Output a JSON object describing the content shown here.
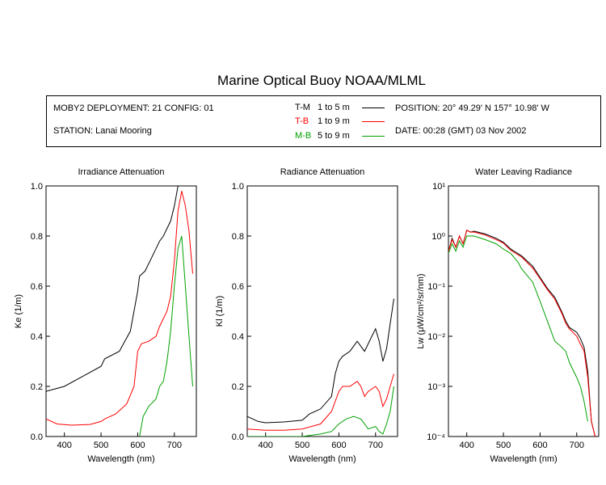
{
  "title": "Marine Optical Buoy NOAA/MLML",
  "info": {
    "deployment": "MOBY2 DEPLOYMENT: 21 CONFIG: 01",
    "station": "STATION: Lanai Mooring",
    "position": "POSITION: 20° 49.29' N   157° 10.98' W",
    "date": "DATE: 00:28 (GMT) 03 Nov 2002"
  },
  "legend": [
    {
      "code": "T-M",
      "range": "1 to 5  m",
      "color": "#000000"
    },
    {
      "code": "T-B",
      "range": "1 to 9  m",
      "color": "#ff0000"
    },
    {
      "code": "M-B",
      "range": "5 to 9  m",
      "color": "#00a000"
    }
  ],
  "chart_data": [
    {
      "type": "line",
      "title": "Irradiance Attenuation",
      "xlabel": "Wavelength (nm)",
      "ylabel": "Ke  (1/m)",
      "xlim": [
        350,
        760
      ],
      "ylim": [
        0,
        1
      ],
      "xticks": [
        "400",
        "500",
        "600",
        "700"
      ],
      "yticks": [
        "0.0",
        "0.2",
        "0.4",
        "0.6",
        "0.8",
        "1.0"
      ],
      "series": [
        {
          "name": "T-M",
          "color": "#000000",
          "x": [
            350,
            400,
            450,
            500,
            510,
            550,
            580,
            600,
            605,
            620,
            640,
            660,
            670,
            690,
            700,
            710
          ],
          "y": [
            0.18,
            0.2,
            0.24,
            0.28,
            0.31,
            0.34,
            0.42,
            0.58,
            0.64,
            0.66,
            0.72,
            0.78,
            0.8,
            0.86,
            0.92,
            1.0
          ]
        },
        {
          "name": "T-B",
          "color": "#ff0000",
          "x": [
            350,
            380,
            420,
            470,
            500,
            510,
            540,
            570,
            590,
            600,
            610,
            630,
            650,
            660,
            680,
            690,
            700,
            710,
            720,
            730,
            740,
            750
          ],
          "y": [
            0.07,
            0.05,
            0.045,
            0.048,
            0.06,
            0.07,
            0.09,
            0.13,
            0.2,
            0.34,
            0.37,
            0.38,
            0.4,
            0.44,
            0.5,
            0.56,
            0.7,
            0.9,
            0.98,
            0.92,
            0.82,
            0.65
          ]
        },
        {
          "name": "M-B",
          "color": "#00a000",
          "x": [
            605,
            615,
            630,
            650,
            660,
            670,
            680,
            690,
            700,
            710,
            720,
            730,
            740,
            750
          ],
          "y": [
            0.0,
            0.08,
            0.12,
            0.15,
            0.2,
            0.22,
            0.3,
            0.42,
            0.6,
            0.75,
            0.8,
            0.6,
            0.4,
            0.2
          ]
        }
      ]
    },
    {
      "type": "line",
      "title": "Radiance Attenuation",
      "xlabel": "Wavelength (nm)",
      "ylabel": "Kl  (1/m)",
      "xlim": [
        350,
        760
      ],
      "ylim": [
        0,
        1
      ],
      "xticks": [
        "400",
        "500",
        "600",
        "700"
      ],
      "yticks": [
        "0.0",
        "0.2",
        "0.4",
        "0.6",
        "0.8",
        "1.0"
      ],
      "series": [
        {
          "name": "T-M",
          "color": "#000000",
          "x": [
            350,
            380,
            400,
            450,
            500,
            520,
            550,
            580,
            590,
            600,
            610,
            630,
            650,
            670,
            690,
            700,
            710,
            720,
            730,
            740,
            750
          ],
          "y": [
            0.08,
            0.06,
            0.055,
            0.058,
            0.065,
            0.09,
            0.11,
            0.16,
            0.25,
            0.3,
            0.32,
            0.34,
            0.38,
            0.34,
            0.4,
            0.43,
            0.38,
            0.3,
            0.35,
            0.45,
            0.55
          ]
        },
        {
          "name": "T-B",
          "color": "#ff0000",
          "x": [
            350,
            400,
            450,
            500,
            550,
            580,
            600,
            610,
            630,
            650,
            660,
            670,
            680,
            700,
            710,
            720,
            730,
            740,
            750
          ],
          "y": [
            0.03,
            0.025,
            0.025,
            0.03,
            0.05,
            0.1,
            0.18,
            0.2,
            0.2,
            0.22,
            0.2,
            0.16,
            0.18,
            0.2,
            0.18,
            0.12,
            0.15,
            0.2,
            0.25
          ]
        },
        {
          "name": "M-B",
          "color": "#00a000",
          "x": [
            350,
            400,
            500,
            550,
            580,
            600,
            620,
            640,
            660,
            680,
            700,
            710,
            720,
            730,
            740,
            750
          ],
          "y": [
            0.0,
            0.0,
            0.0,
            0.01,
            0.02,
            0.05,
            0.07,
            0.08,
            0.07,
            0.03,
            0.04,
            0.02,
            0.01,
            0.05,
            0.1,
            0.2
          ]
        }
      ]
    },
    {
      "type": "line",
      "title": "Water Leaving Radiance",
      "xlabel": "Wavelength (nm)",
      "ylabel": "Lw  (μW/cm²/sr/nm)",
      "xlim": [
        350,
        760
      ],
      "yscale": "log",
      "ylim": [
        0.0001,
        10
      ],
      "xticks": [
        "400",
        "500",
        "600",
        "700"
      ],
      "yticks": [
        "10⁻⁴",
        "10⁻³",
        "10⁻²",
        "10⁻¹",
        "10⁰",
        "10¹"
      ],
      "series": [
        {
          "name": "T-M",
          "color": "#000000",
          "x": [
            350,
            360,
            370,
            380,
            390,
            400,
            410,
            420,
            450,
            480,
            500,
            520,
            550,
            580,
            600,
            620,
            640,
            660,
            670,
            680,
            700,
            710,
            720,
            730,
            740,
            750
          ],
          "y": [
            0.5,
            0.9,
            0.6,
            1.0,
            0.7,
            1.3,
            1.2,
            1.25,
            1.1,
            0.9,
            0.75,
            0.55,
            0.4,
            0.25,
            0.15,
            0.09,
            0.06,
            0.03,
            0.02,
            0.015,
            0.012,
            0.009,
            0.006,
            0.002,
            0.0002,
            0.0001
          ]
        },
        {
          "name": "T-B",
          "color": "#ff0000",
          "x": [
            350,
            360,
            370,
            380,
            390,
            400,
            410,
            420,
            450,
            480,
            500,
            520,
            550,
            580,
            600,
            620,
            640,
            660,
            670,
            680,
            700,
            710,
            720,
            730,
            740,
            750
          ],
          "y": [
            0.5,
            0.85,
            0.6,
            1.0,
            0.7,
            1.3,
            1.2,
            1.2,
            1.05,
            0.85,
            0.72,
            0.52,
            0.38,
            0.23,
            0.14,
            0.085,
            0.055,
            0.028,
            0.018,
            0.014,
            0.01,
            0.007,
            0.005,
            0.0015,
            0.0002,
            0.0001
          ]
        },
        {
          "name": "M-B",
          "color": "#00a000",
          "x": [
            350,
            360,
            370,
            380,
            390,
            400,
            420,
            450,
            480,
            500,
            520,
            540,
            550,
            560,
            580,
            600,
            620,
            640,
            660,
            670,
            680,
            700,
            710,
            720,
            730
          ],
          "y": [
            0.45,
            0.7,
            0.5,
            0.8,
            0.6,
            1.0,
            1.0,
            0.85,
            0.7,
            0.55,
            0.45,
            0.3,
            0.22,
            0.18,
            0.12,
            0.05,
            0.02,
            0.008,
            0.006,
            0.005,
            0.003,
            0.0015,
            0.001,
            0.0005,
            0.0002
          ]
        }
      ]
    }
  ]
}
